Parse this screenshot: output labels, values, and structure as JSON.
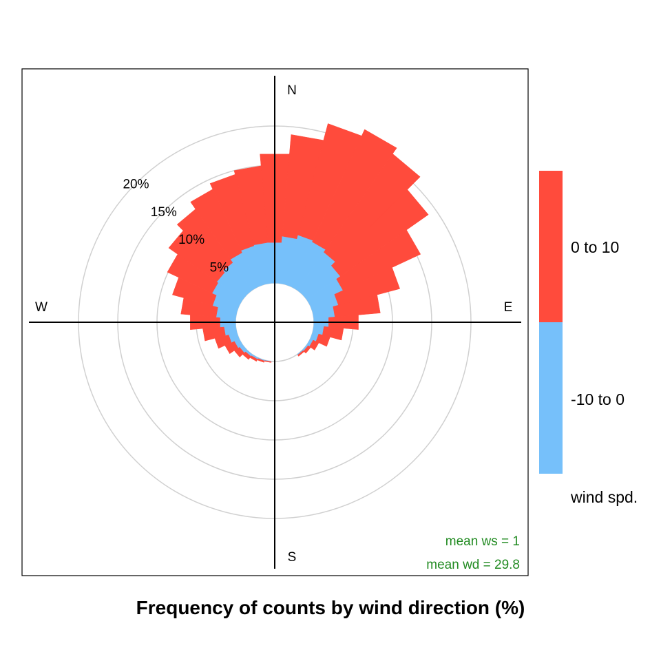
{
  "chart_data": {
    "type": "polar-bar",
    "title": "Frequency of counts by wind direction (%)",
    "compass": {
      "n": "N",
      "e": "E",
      "s": "S",
      "w": "W"
    },
    "rings": [
      {
        "value": 5,
        "label": "5%"
      },
      {
        "value": 10,
        "label": "10%"
      },
      {
        "value": 15,
        "label": "15%"
      },
      {
        "value": 20,
        "label": "20%"
      }
    ],
    "offset_pct": 5,
    "legend": {
      "title": "wind spd.",
      "items": [
        {
          "label": "0 to 10",
          "color": "#FF4B3C"
        },
        {
          "label": "-10 to 0",
          "color": "#76C0FA"
        }
      ]
    },
    "series": [
      {
        "name": "-10 to 0",
        "color": "#76C0FA"
      },
      {
        "name": "0 to 10",
        "color": "#FF4B3C"
      }
    ],
    "directions": [
      {
        "angle": 0,
        "values": [
          5.2,
          11.3
        ]
      },
      {
        "angle": 10,
        "values": [
          6.0,
          13.0
        ]
      },
      {
        "angle": 20,
        "values": [
          6.5,
          14.7
        ]
      },
      {
        "angle": 30,
        "values": [
          6.3,
          15.8
        ]
      },
      {
        "angle": 40,
        "values": [
          5.9,
          15.3
        ]
      },
      {
        "angle": 50,
        "values": [
          5.2,
          13.7
        ]
      },
      {
        "angle": 60,
        "values": [
          4.6,
          10.9
        ]
      },
      {
        "angle": 70,
        "values": [
          3.4,
          8.1
        ]
      },
      {
        "angle": 80,
        "values": [
          2.7,
          5.8
        ]
      },
      {
        "angle": 90,
        "values": [
          1.9,
          3.8
        ]
      },
      {
        "angle": 100,
        "values": [
          1.3,
          2.5
        ]
      },
      {
        "angle": 110,
        "values": [
          0.8,
          1.5
        ]
      },
      {
        "angle": 120,
        "values": [
          0.4,
          0.8
        ]
      },
      {
        "angle": 130,
        "values": [
          0.2,
          0.4
        ]
      },
      {
        "angle": 140,
        "values": [
          0.1,
          0.2
        ]
      },
      {
        "angle": 190,
        "values": [
          0.05,
          0.1
        ]
      },
      {
        "angle": 200,
        "values": [
          0.1,
          0.2
        ]
      },
      {
        "angle": 210,
        "values": [
          0.2,
          0.3
        ]
      },
      {
        "angle": 220,
        "values": [
          0.3,
          0.5
        ]
      },
      {
        "angle": 230,
        "values": [
          0.5,
          0.8
        ]
      },
      {
        "angle": 240,
        "values": [
          0.7,
          1.3
        ]
      },
      {
        "angle": 250,
        "values": [
          1.1,
          1.8
        ]
      },
      {
        "angle": 260,
        "values": [
          1.5,
          2.7
        ]
      },
      {
        "angle": 270,
        "values": [
          2.0,
          3.8
        ]
      },
      {
        "angle": 280,
        "values": [
          2.5,
          4.5
        ]
      },
      {
        "angle": 290,
        "values": [
          3.2,
          5.3
        ]
      },
      {
        "angle": 300,
        "values": [
          3.8,
          6.3
        ]
      },
      {
        "angle": 310,
        "values": [
          4.0,
          7.5
        ]
      },
      {
        "angle": 320,
        "values": [
          4.3,
          8.3
        ]
      },
      {
        "angle": 330,
        "values": [
          4.8,
          8.9
        ]
      },
      {
        "angle": 340,
        "values": [
          5.1,
          9.4
        ]
      },
      {
        "angle": 350,
        "values": [
          5.2,
          9.8
        ]
      }
    ],
    "stats": {
      "mean_ws_label": "mean ws =  1",
      "mean_wd_label": "mean wd =  29.8"
    }
  }
}
